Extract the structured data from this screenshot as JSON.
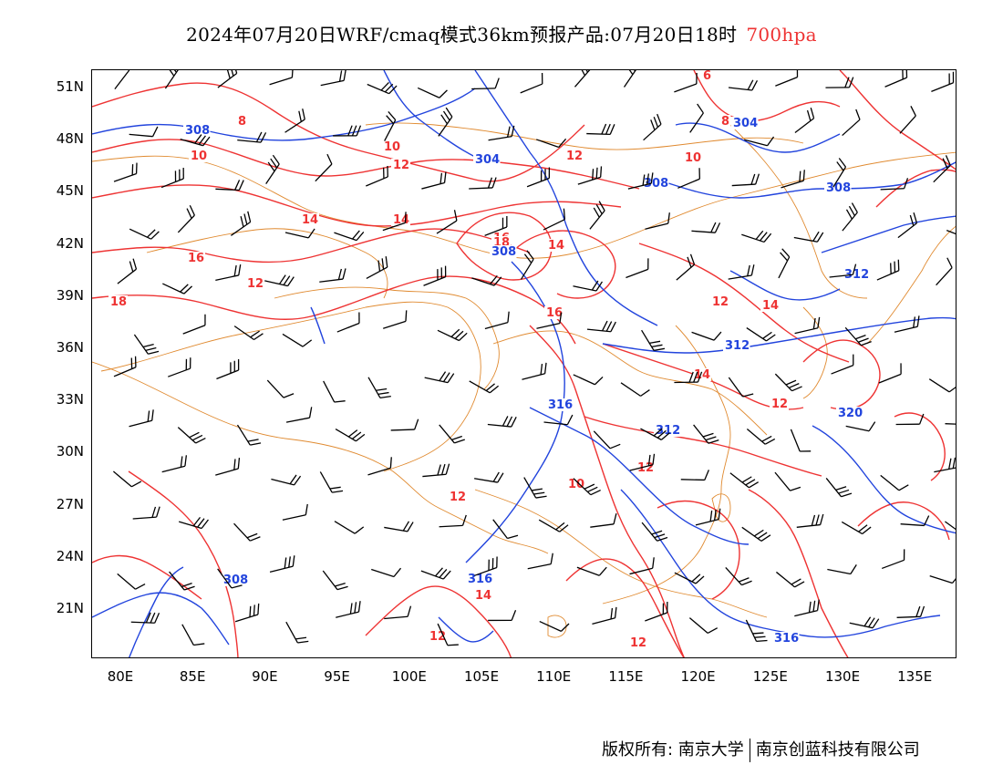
{
  "title": {
    "main": "2024年07月20日WRF/cmaq模式36km预报产品:07月20日18时",
    "level": "700hpa",
    "level_color": "#ee3333"
  },
  "colors": {
    "temperature_contour": "#ee3333",
    "height_contour": "#2244dd",
    "boundaries": "#e08a30",
    "wind_barbs": "#000000"
  },
  "axes": {
    "y_labels": [
      "51N",
      "48N",
      "45N",
      "42N",
      "39N",
      "36N",
      "33N",
      "30N",
      "27N",
      "24N",
      "21N"
    ],
    "x_labels": [
      "80E",
      "85E",
      "90E",
      "95E",
      "100E",
      "105E",
      "110E",
      "115E",
      "120E",
      "125E",
      "130E",
      "135E"
    ]
  },
  "contour_labels": {
    "temperature": [
      "8",
      "10",
      "12",
      "14",
      "16",
      "18",
      "10",
      "12",
      "14",
      "16",
      "18",
      "6",
      "8",
      "10",
      "12",
      "14",
      "16",
      "12",
      "14",
      "12",
      "14",
      "12",
      "10",
      "12",
      "14",
      "12",
      "12"
    ],
    "height": [
      "308",
      "304",
      "304",
      "308",
      "308",
      "308",
      "312",
      "312",
      "316",
      "312",
      "316",
      "320",
      "308",
      "316"
    ]
  },
  "footer": {
    "left": "版权所有: 南京大学",
    "right": "南京创蓝科技有限公司"
  },
  "icons": {
    "wind_barb": "wind-barb-icon"
  }
}
